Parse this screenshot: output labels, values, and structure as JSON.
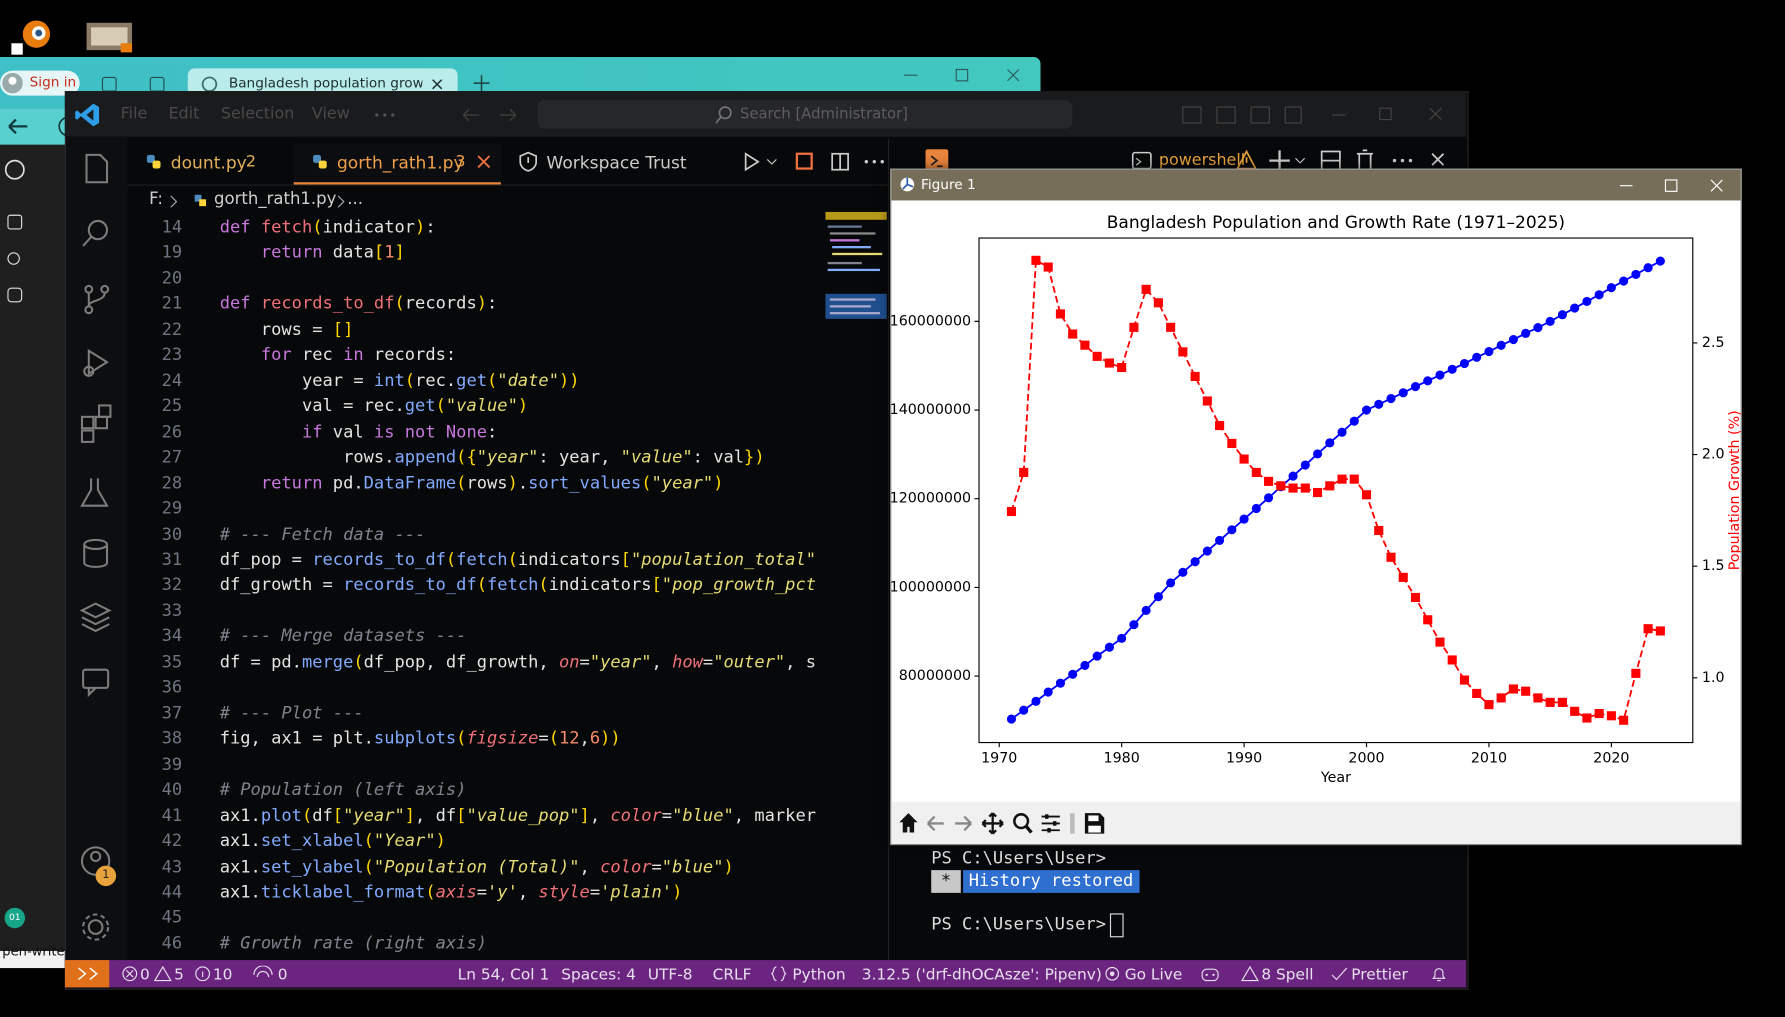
{
  "ui": {
    "browser": {
      "sign_in": "Sign in",
      "tab_title": "Bangladesh population growth g",
      "taskbar_label": "pen-write...",
      "taskbar_badge": "01"
    },
    "editor": {
      "menu": [
        "File",
        "Edit",
        "Selection",
        "View"
      ],
      "search": "Search [Administrator]",
      "tabs": [
        {
          "name": "dount.py",
          "problems": 2
        },
        {
          "name": "gorth_rath1.py",
          "problems": 3
        },
        {
          "name": "Workspace Trust"
        }
      ],
      "breadcrumb": [
        "F:",
        "gorth_rath1.py",
        "..."
      ],
      "account_badge": 1,
      "lines": [
        {
          "no": 14,
          "code": "def fetch(indicator):"
        },
        {
          "no": 19,
          "code": "    return data[1]"
        },
        {
          "no": 20
        },
        {
          "no": 21,
          "code": "def records_to_df(records):"
        },
        {
          "no": 22,
          "code": "    rows = []"
        },
        {
          "no": 23,
          "code": "    for rec in records:"
        },
        {
          "no": 24,
          "code": "        year = int(rec.get(\"date\"))"
        },
        {
          "no": 25,
          "code": "        val = rec.get(\"value\")"
        },
        {
          "no": 26,
          "code": "        if val is not None:"
        },
        {
          "no": 27,
          "code": "            rows.append({\"year\": year, \"value\": val})"
        },
        {
          "no": 28,
          "code": "    return pd.DataFrame(rows).sort_values(\"year\")"
        },
        {
          "no": 29
        },
        {
          "no": 30,
          "code": "# --- Fetch data ---"
        },
        {
          "no": 31,
          "code": "df_pop = records_to_df(fetch(indicators[\"population_total\""
        },
        {
          "no": 32,
          "code": "df_growth = records_to_df(fetch(indicators[\"pop_growth_pct"
        },
        {
          "no": 33
        },
        {
          "no": 34,
          "code": "# --- Merge datasets ---"
        },
        {
          "no": 35,
          "code": "df = pd.merge(df_pop, df_growth, on=\"year\", how=\"outer\", s"
        },
        {
          "no": 36
        },
        {
          "no": 37,
          "code": "# --- Plot ---"
        },
        {
          "no": 38,
          "code": "fig, ax1 = plt.subplots(figsize=(12,6))"
        },
        {
          "no": 39
        },
        {
          "no": 40,
          "code": "# Population (left axis)"
        },
        {
          "no": 41,
          "code": "ax1.plot(df[\"year\"], df[\"value_pop\"], color=\"blue\", marker"
        },
        {
          "no": 42,
          "code": "ax1.set_xlabel(\"Year\")"
        },
        {
          "no": 43,
          "code": "ax1.set_ylabel(\"Population (Total)\", color=\"blue\")"
        },
        {
          "no": 44,
          "code": "ax1.ticklabel_format(axis='y', style='plain')"
        },
        {
          "no": 45
        },
        {
          "no": 46,
          "code": "# Growth rate (right axis)"
        }
      ]
    },
    "terminal": {
      "shell": "powershell",
      "prompt_1": "PS C:\\Users\\User>",
      "history_marker": "*",
      "history_note": "History restored",
      "prompt_2": "PS C:\\Users\\User>"
    },
    "status": {
      "errors": 0,
      "warnings": 5,
      "infos": 10,
      "ports": 0,
      "position": "Ln 54, Col 1",
      "spaces": "Spaces: 4",
      "encoding": "UTF-8",
      "eol": "CRLF",
      "language": "Python",
      "interpreter": "3.12.5 ('drf-dhOCAsze': Pipenv)",
      "live": "Go Live",
      "spell": "8 Spell",
      "formatter": "Prettier"
    },
    "figure": {
      "window_title": "Figure 1"
    }
  },
  "chart_data": {
    "type": "line",
    "title": "Bangladesh Population and Growth Rate (1971–2025)",
    "xlabel": "Year",
    "y2label": "Population Growth (%)",
    "y2label_color": "red",
    "x": [
      1971,
      1972,
      1973,
      1974,
      1975,
      1976,
      1977,
      1978,
      1979,
      1980,
      1981,
      1982,
      1983,
      1984,
      1985,
      1986,
      1987,
      1988,
      1989,
      1990,
      1991,
      1992,
      1993,
      1994,
      1995,
      1996,
      1997,
      1998,
      1999,
      2000,
      2001,
      2002,
      2003,
      2004,
      2005,
      2006,
      2007,
      2008,
      2009,
      2010,
      2011,
      2012,
      2013,
      2014,
      2015,
      2016,
      2017,
      2018,
      2019,
      2020,
      2021,
      2022,
      2023,
      2024
    ],
    "series": [
      {
        "color": "blue",
        "marker": "o",
        "linestyle": "solid",
        "values": [
          70300000,
          72300000,
          74300000,
          76400000,
          78400000,
          80400000,
          82400000,
          84500000,
          86500000,
          88500000,
          91600000,
          94800000,
          97900000,
          101000000,
          103400000,
          105800000,
          108200000,
          110600000,
          113000000,
          115400000,
          117800000,
          120200000,
          122700000,
          125100000,
          127600000,
          130100000,
          132600000,
          135000000,
          137500000,
          140000000,
          141300000,
          142600000,
          143900000,
          145300000,
          146600000,
          147900000,
          149200000,
          150500000,
          151900000,
          153200000,
          154600000,
          155900000,
          157300000,
          158600000,
          160000000,
          161500000,
          163000000,
          164500000,
          166000000,
          167600000,
          169100000,
          170600000,
          172100000,
          173600000
        ]
      },
      {
        "color": "red",
        "marker": "s",
        "linestyle": "dashed",
        "axis": "y2",
        "values": [
          1.745,
          1.92,
          2.87,
          2.84,
          2.63,
          2.54,
          2.49,
          2.44,
          2.41,
          2.39,
          2.57,
          2.74,
          2.68,
          2.57,
          2.46,
          2.35,
          2.24,
          2.13,
          2.05,
          1.98,
          1.92,
          1.88,
          1.86,
          1.85,
          1.85,
          1.83,
          1.86,
          1.89,
          1.89,
          1.82,
          1.66,
          1.54,
          1.45,
          1.36,
          1.26,
          1.16,
          1.08,
          0.99,
          0.93,
          0.88,
          0.91,
          0.95,
          0.94,
          0.91,
          0.89,
          0.89,
          0.85,
          0.82,
          0.84,
          0.83,
          0.81,
          1.02,
          1.22,
          1.21
        ]
      }
    ],
    "xlim": [
      1968.35,
      2026.65
    ],
    "xticks": [
      1970,
      1980,
      1990,
      2000,
      2010,
      2020
    ],
    "ylim": [
      65000000,
      178800000
    ],
    "yticks": [
      80000000,
      100000000,
      120000000,
      140000000,
      160000000
    ],
    "y2lim": [
      0.71,
      2.97
    ],
    "y2ticks": [
      {
        "value": 1,
        "label": "1.0"
      },
      1.5,
      {
        "value": 2,
        "label": "2.0"
      },
      2.5
    ],
    "grid": false
  }
}
